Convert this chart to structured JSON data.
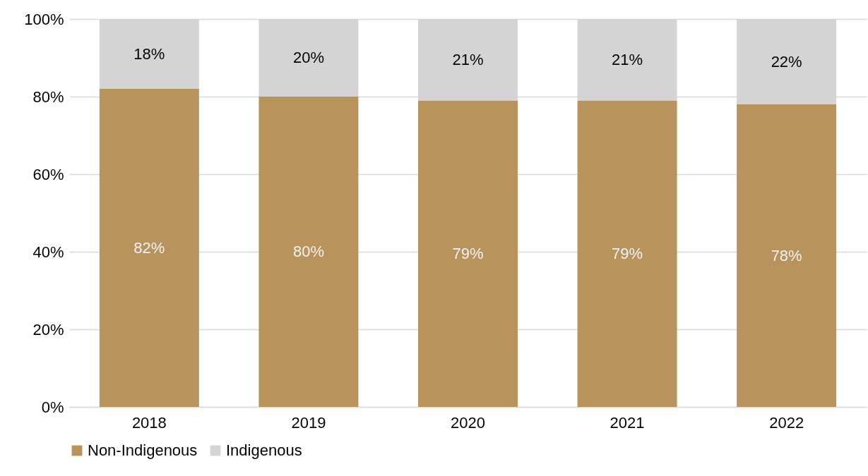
{
  "chart_data": {
    "type": "bar",
    "stacked": true,
    "categories": [
      "2018",
      "2019",
      "2020",
      "2021",
      "2022"
    ],
    "series": [
      {
        "name": "Non-Indigenous",
        "color": "#b8945c",
        "values": [
          82,
          80,
          79,
          79,
          78
        ],
        "value_labels": [
          "82%",
          "80%",
          "79%",
          "79%",
          "78%"
        ]
      },
      {
        "name": "Indigenous",
        "color": "#d4d4d4",
        "values": [
          18,
          20,
          21,
          21,
          22
        ],
        "value_labels": [
          "18%",
          "20%",
          "21%",
          "21%",
          "22%"
        ]
      }
    ],
    "ylim": [
      0,
      100
    ],
    "yticks": [
      {
        "value": 0,
        "label": "0%"
      },
      {
        "value": 20,
        "label": "20%"
      },
      {
        "value": 40,
        "label": "40%"
      },
      {
        "value": 60,
        "label": "60%"
      },
      {
        "value": 80,
        "label": "80%"
      },
      {
        "value": 100,
        "label": "100%"
      }
    ],
    "grid": "y",
    "legend": "bottom"
  }
}
